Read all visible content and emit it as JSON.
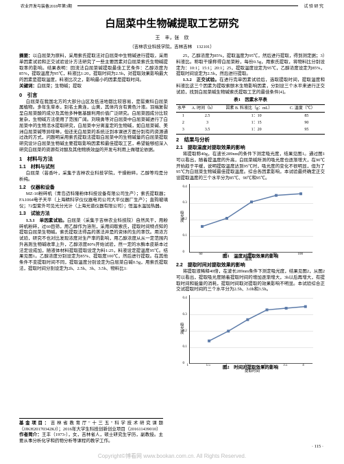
{
  "header": {
    "left": "农业开发与装备",
    "mid": "2018年第3期",
    "right": "试 验 研 究"
  },
  "title": "白屈菜中生物碱提取工艺研究",
  "authors": "王　丰，张　欣",
  "affil": "（吉林农业科技学院，吉林吉林　132101）",
  "abstract": {
    "label": "摘要：",
    "text": "以白屈菜为原料，采用索氏提取法对白屈菜中生物碱进行提取，采用单因素试验和正交试验设计方法研究了一些主要因素对白屈菜索氏生物碱提取率的影响。结果表明：回流法白屈菜碱提取最佳工艺条件：乙醇浓度为85%，提取温度为95℃，料液比1:20，提取时间为2.5h，对提取效果影响最大的因素是提取温度，料液比次之，影响最小的因素是提取时间。",
    "kw_label": "关键词：",
    "kw": "白屈菜；生物碱；提取"
  },
  "s0": {
    "h": "0　引言",
    "p": "白屈菜在我国北方的大部分山区及低洼地都比较容易，是罂粟科白屈菜属植物。多年生草本，别名土黄连，山黄，其体内含有黄色汁液。羽端复裂呈白屈菜酸的成分及其他多种氨基酸利用价值广泛研究。白屈菜园成分比较复杂，生物碱方法使用了范围广阔。刘晓勇等对白屈菜中白屈菜碱进行了白屈菜中的生物活水提取研究，白屈菜中分离鉴定的生物碱，如白屈菜碱、美洲白屈菜碱等异喹啉，但还无白屈菜的系统泛到本课进方面分别有的资源通过改的方式，问题明采用索氏提取法提取白屈菜中的生物碱量的白屈菜提取研究设计白屈菜生物碱主要提取影响因素和最佳提取工艺，希望能够招深入研究白屈菜的资源有对酸及其他物质效益的开发与利用上做理论依据。"
  },
  "s1": {
    "h": "1　材料与方法",
    "s11h": "1.1　材料与试剂",
    "s11p": "白屈菜（芸香叶，采集于吉林农业科技学院，干燥粉碎。乙醇等均是分析纯。",
    "s12h": "1.2　仪器和设备",
    "s12p": "MZ-10粉碎机（青岛迈科隆粉体科技设备有限公司生产）；索氏提取器；FA1064电子天平（上海精科学仪仪器电司公司大平仪器厂生产）；直购玻璃仪；72型紫外可见光分光计（上海光谱仪器有限公司）；恒温水温加热器。",
    "s13h": "1.3　试验方法",
    "s131h": "1.3.1　单因素试验。",
    "s131p": "白屈菜（采集于吉林农业科技院）自然风干，用粉碎机粉碎，过60目筛，用乙醇作为溶剂，采用间歇索氏，提取时间特点知的提取白屈菜生物碱。索氏提取法得品的蒸法并是的资体的生的率饮。用浓方试验，研究不也对比发现浓度对生产率的影响，用乙醇浓度从从一定范围内升高则生物碱收率上升，乙醇浓度80%开始试验，然一定的水酶本皮新本过法定设成加，随液体材料提取提取设定为料1:25，料液设定提温度95℃。结果见图1。乙醇浓度分别设定为85%、提取度100℃，然后进行提取。在其他条件不变提取时间不同，提取温度分别设定为白屈菜白碱0.5g，用索氏提取法，提取时间分别设定为2h、2.5h、3h、3.5h、物料比1:"
  },
  "right": {
    "p1": "25，乙醇浓度为85%，提取温度为95℃，然后进行提取，得到测定据；3）料液比。称取干燥称得白屈菜粉，每份0.5g，用索氏提取，将物料比分别设定为：10:1；15:1；20:1；25，提取温度设定为95℃，乙醇浓度设定为85%，提取时间设定为2.5h，然后进行提取。",
    "p132h": "1.3.2　正交试验。",
    "p132": "在进行完单因素试验后，选取提取时间，提取温度和料液比这三个因素为提取索颐木生物影响因素，分别设三个水平来进行正交试验，找到白屈菜碱生物碱索氏提取工艺的最佳条件[4]。",
    "tbl1title": "表1　因素水平表",
    "tbl1": {
      "head": [
        "水平",
        "A. 时间（h）",
        "因素\nB. 料液比（g：mL）",
        "C. 温度（℃）"
      ],
      "rows": [
        [
          "1",
          "2.5",
          "1：10",
          "85"
        ],
        [
          "2",
          "3",
          "1：15",
          "90"
        ],
        [
          "3",
          "3.5",
          "1：20",
          "95"
        ]
      ]
    },
    "s2h": "2　结果与分析",
    "s21h": "2.1　提取温度对提取效果的影响",
    "s21p": "将提取称40g，在波长289nm的条件下测定吸光度，结果见图1。通过图1可以看出，随着提温度的升高，白屈菜碱所测的吸光度也逐渐增大，在90℃开始趋于平缓，说明提取温度达到95℃时，吸光度的变化不很明显，但为了95℃为白屈菜生物碱最佳提取温度。综合各因素影响，本试验最终确定正交设提取温度的三个水平分为85℃、90℃和95℃。",
    "chart1": {
      "ylabel": "吸光度",
      "xlabel": "温度",
      "xticks": [
        "60",
        "70",
        "80",
        "90",
        "100"
      ],
      "yticks": [
        "0",
        "0.1",
        "0.2",
        "0.3",
        "0.4"
      ],
      "points": [
        [
          60,
          0.16
        ],
        [
          70,
          0.21
        ],
        [
          80,
          0.31
        ],
        [
          90,
          0.35
        ],
        [
          100,
          0.36
        ]
      ],
      "xlim": [
        55,
        105
      ],
      "ylim": [
        0,
        0.42
      ],
      "color": "#5b7aa8"
    },
    "cap1": "图1　温度对提取效果的影响",
    "s22h": "2.2　提取时间对提取效果的影响",
    "s22p": "将提取液稀释40倍，在波长289nm条件下测定吸光度，结果见图2，从图2可以看出，提取吸光度随着提取时间的增加逐渐增大，3h以后再增大，有提取时间和能量的消耗，提取时间取对提取的效果影响不明显。本试验综合正交试提取时间的三个水平分为2.5h、3.0h和3.5h。",
    "chart2": {
      "ylabel": "吸光度",
      "xlabel": "提取时间",
      "xticks": [
        "1",
        "1.5",
        "2",
        "2.5",
        "3",
        "3.5",
        "4"
      ],
      "yticks": [
        "0",
        "0.1",
        "0.2",
        "0.3",
        "0.4"
      ],
      "points": [
        [
          1.5,
          0.14
        ],
        [
          2,
          0.2
        ],
        [
          2.5,
          0.27
        ],
        [
          3,
          0.33
        ],
        [
          3.5,
          0.34
        ],
        [
          4,
          0.35
        ]
      ],
      "xlim": [
        1,
        4.2
      ],
      "ylim": [
        0,
        0.42
      ],
      "color": "#5b7aa8"
    },
    "cap2": "图2　时间对提取效果的影响"
  },
  "footer": {
    "fund_label": "基金项目：",
    "fund": "吉林省教育厅\"十三五\"科学技术研究课题（JJKH20170342KJ）；2016年大学生科技创新创业项目（201611439010）",
    "author_label": "作者简介：",
    "author": "王丰（1973-），女，吉林省人，硕士研究生学历，副教授。主要从事分析化学和药物分析等课程的教学工作。"
  },
  "pagenum": "· 115 ·",
  "watermark": "Copyright©博看网 www.bookan.com.cn. All Rights Reserved."
}
